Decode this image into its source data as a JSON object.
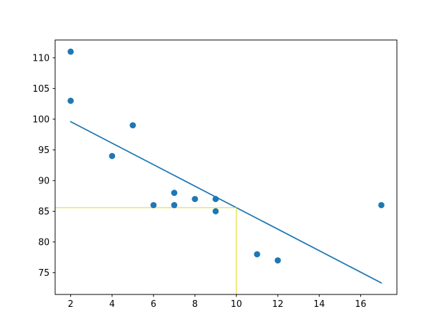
{
  "figure": {
    "background": "#ffffff",
    "plot_background": "#ffffff",
    "frame_color": "#000000"
  },
  "chart_data": {
    "type": "scatter",
    "title": "",
    "xlabel": "",
    "ylabel": "",
    "x": [
      5,
      7,
      8,
      7,
      2,
      17,
      2,
      9,
      4,
      11,
      12,
      9,
      6
    ],
    "y": [
      99,
      86,
      87,
      88,
      111,
      86,
      103,
      87,
      94,
      78,
      77,
      85,
      86
    ],
    "regression_line": {
      "x": [
        2,
        17
      ],
      "y": [
        99.6,
        73.33
      ]
    },
    "crosshair": {
      "x": 10,
      "y": 85.59
    },
    "xlim": [
      1.25,
      17.75
    ],
    "ylim": [
      71.45,
      112.9
    ],
    "xticks": [
      2,
      4,
      6,
      8,
      10,
      12,
      14,
      16
    ],
    "yticks": [
      75,
      80,
      85,
      90,
      95,
      100,
      105,
      110
    ],
    "grid": false,
    "legend": null,
    "colors": {
      "points": "#1f77b4",
      "line": "#1f77b4",
      "crosshair": "#ded81f"
    },
    "marker_radius": 4.5,
    "line_width": 1.8,
    "crosshair_width": 1.1
  }
}
